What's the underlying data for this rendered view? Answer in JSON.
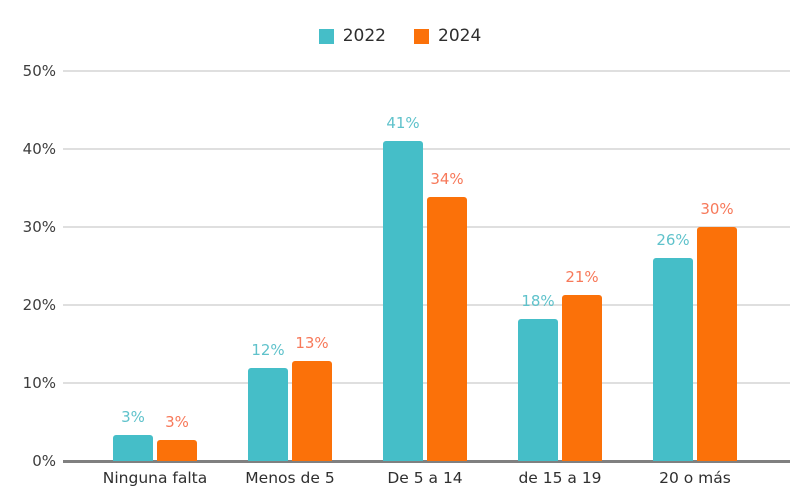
{
  "legend": {
    "items": [
      {
        "label": "2022",
        "color": "#45bec8"
      },
      {
        "label": "2024",
        "color": "#fb7109"
      }
    ]
  },
  "chart_data": {
    "type": "bar",
    "title": "",
    "categories": [
      "Ninguna falta",
      "Menos de 5",
      "De 5 a 14",
      "de 15 a 19",
      "20 o más"
    ],
    "series": [
      {
        "name": "2022",
        "color": "#45bec8",
        "label_color": "#5fc2cb",
        "values": [
          3,
          12,
          41,
          18,
          26
        ],
        "labels": [
          "3%",
          "12%",
          "41%",
          "18%",
          "26%"
        ],
        "bar_heights_pct": [
          3.3,
          11.9,
          41.0,
          18.2,
          26.0
        ]
      },
      {
        "name": "2024",
        "color": "#fb7109",
        "label_color": "#f7795a",
        "values": [
          3,
          13,
          34,
          21,
          30
        ],
        "labels": [
          "3%",
          "13%",
          "34%",
          "21%",
          "30%"
        ],
        "bar_heights_pct": [
          2.7,
          12.8,
          33.8,
          21.3,
          30.0
        ]
      }
    ],
    "xlabel": "",
    "ylabel": "",
    "ylim": [
      0,
      50
    ],
    "yticks": [
      "0%",
      "10%",
      "20%",
      "30%",
      "40%",
      "50%"
    ],
    "grid": true,
    "legend_position": "top-center"
  },
  "styles": {
    "background": "#ffffff",
    "grid_color": "#dfdfdf",
    "axis_line_color": "#808080",
    "tick_label_color": "#3d3d3d",
    "category_label_color": "#2f2f2f",
    "legend_text_color": "#2e2e2e"
  }
}
